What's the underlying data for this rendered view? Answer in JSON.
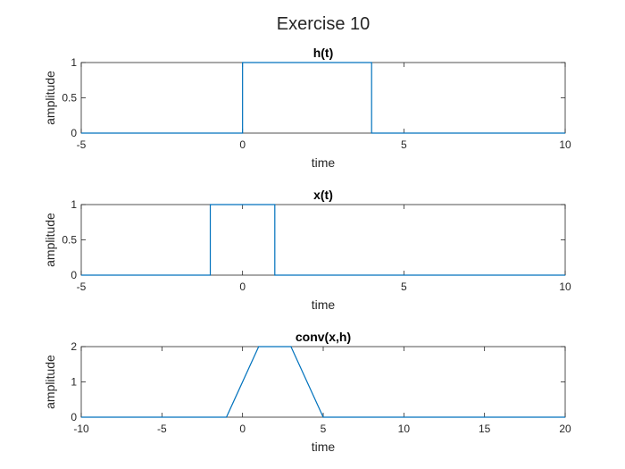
{
  "figure": {
    "title": "Exercise 10"
  },
  "colors": {
    "line": "#0072BD",
    "axis": "#262626"
  },
  "chart_data": [
    {
      "type": "line",
      "title": "h(t)",
      "xlabel": "time",
      "ylabel": "amplitude",
      "xlim": [
        -5,
        10
      ],
      "ylim": [
        0,
        1
      ],
      "xticks": [
        -5,
        0,
        5,
        10
      ],
      "yticks": [
        0,
        0.5,
        1
      ],
      "grid": false,
      "series": [
        {
          "x": [
            -5,
            0,
            0,
            4,
            4,
            10
          ],
          "y": [
            0,
            0,
            1,
            1,
            0,
            0
          ]
        }
      ]
    },
    {
      "type": "line",
      "title": "x(t)",
      "xlabel": "time",
      "ylabel": "amplitude",
      "xlim": [
        -5,
        10
      ],
      "ylim": [
        0,
        1
      ],
      "xticks": [
        -5,
        0,
        5,
        10
      ],
      "yticks": [
        0,
        0.5,
        1
      ],
      "grid": false,
      "series": [
        {
          "x": [
            -5,
            -1,
            -1,
            1,
            1,
            10
          ],
          "y": [
            0,
            0,
            1,
            1,
            0,
            0
          ]
        }
      ]
    },
    {
      "type": "line",
      "title": "conv(x,h)",
      "xlabel": "time",
      "ylabel": "amplitude",
      "xlim": [
        -10,
        20
      ],
      "ylim": [
        0,
        2
      ],
      "xticks": [
        -10,
        -5,
        0,
        5,
        10,
        15,
        20
      ],
      "yticks": [
        0,
        1,
        2
      ],
      "grid": false,
      "series": [
        {
          "x": [
            -10,
            -1,
            1,
            3,
            5,
            20
          ],
          "y": [
            0,
            0,
            2,
            2,
            0,
            0
          ]
        }
      ]
    }
  ]
}
